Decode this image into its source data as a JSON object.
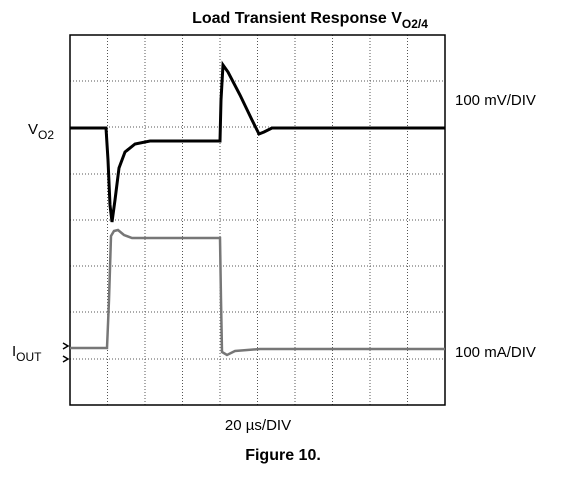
{
  "title": {
    "text": "Load Transient Response V",
    "sub": "O2/4"
  },
  "labels": {
    "vo2": {
      "text": "V",
      "sub": "O2"
    },
    "iout": {
      "text": "I",
      "sub": "OUT"
    },
    "voltage_scale": "100 mV/DIV",
    "current_scale": "100 mA/DIV",
    "time_scale": "20 µs/DIV"
  },
  "caption": "Figure 10."
}
